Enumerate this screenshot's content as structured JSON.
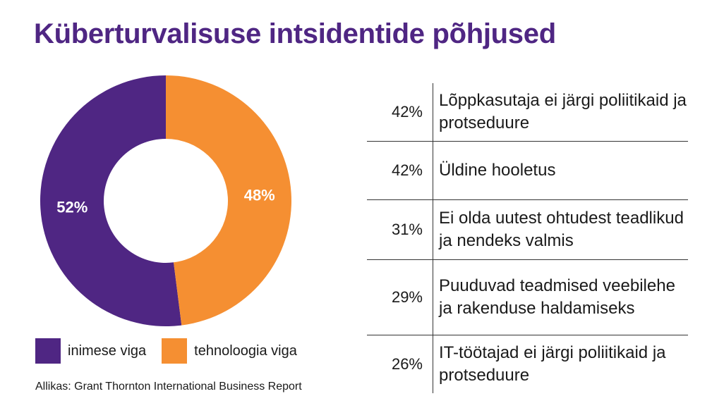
{
  "title": "Küberturvalisuse intsidentide põhjused",
  "chart_data": {
    "type": "pie",
    "series": [
      {
        "name": "inimese viga",
        "value": 52,
        "label": "52%",
        "color": "#4f2683"
      },
      {
        "name": "tehnoloogia viga",
        "value": 48,
        "label": "48%",
        "color": "#f58f32"
      }
    ]
  },
  "legend": [
    {
      "label": "inimese viga",
      "color": "#4f2683"
    },
    {
      "label": "tehnoloogia viga",
      "color": "#f58f32"
    }
  ],
  "table": {
    "rows": [
      {
        "pct": "42%",
        "label": "Lõppkasutaja ei järgi poliitikaid ja protseduure"
      },
      {
        "pct": "42%",
        "label": "Üldine hooletus"
      },
      {
        "pct": "31%",
        "label": "Ei olda uutest ohtudest teadlikud ja nendeks valmis"
      },
      {
        "pct": "29%",
        "label": "Puuduvad teadmised veebilehe ja rakenduse haldamiseks"
      },
      {
        "pct": "26%",
        "label": "IT-töötajad ei järgi poliitikaid ja protseduure"
      }
    ]
  },
  "source": "Allikas: Grant Thornton International Business Report"
}
